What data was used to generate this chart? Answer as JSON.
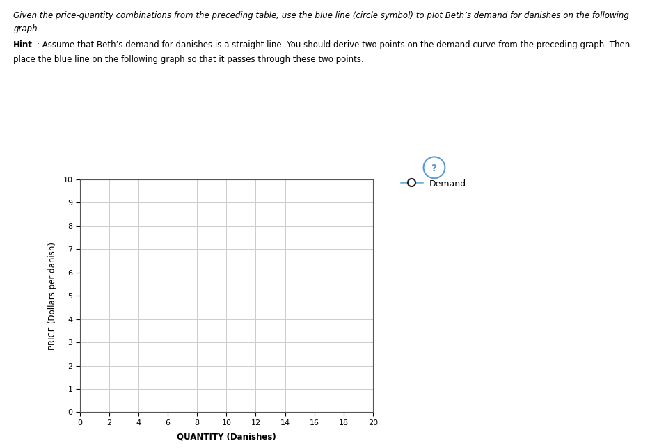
{
  "xlabel": "QUANTITY (Danishes)",
  "ylabel": "PRICE (Dollars per danish)",
  "xlim": [
    0,
    20
  ],
  "ylim": [
    0,
    10
  ],
  "xticks": [
    0,
    2,
    4,
    6,
    8,
    10,
    12,
    14,
    16,
    18,
    20
  ],
  "yticks": [
    0,
    1,
    2,
    3,
    4,
    5,
    6,
    7,
    8,
    9,
    10
  ],
  "grid_color": "#cccccc",
  "line_color": "#6baed6",
  "marker_color_face": "white",
  "marker_color_edge": "#222222",
  "legend_label": "Demand",
  "background_color": "#ffffff",
  "panel_bg": "#f2f2f2",
  "outer_bg": "#ffffff",
  "marker_size": 8,
  "linewidth": 1.8,
  "figure_width": 9.57,
  "figure_height": 6.44,
  "line1": "Given the price-quantity combinations from the preceding table, use the blue line (circle symbol) to plot Beth’s demand for danishes on the following",
  "line2": "graph.",
  "hint_bold": "Hint",
  "hint_rest": ": Assume that Beth’s demand for danishes is a straight line. You should derive two points on the demand curve from the preceding graph. Then",
  "hint_line2": "place the blue line on the following graph so that it passes through these two points."
}
